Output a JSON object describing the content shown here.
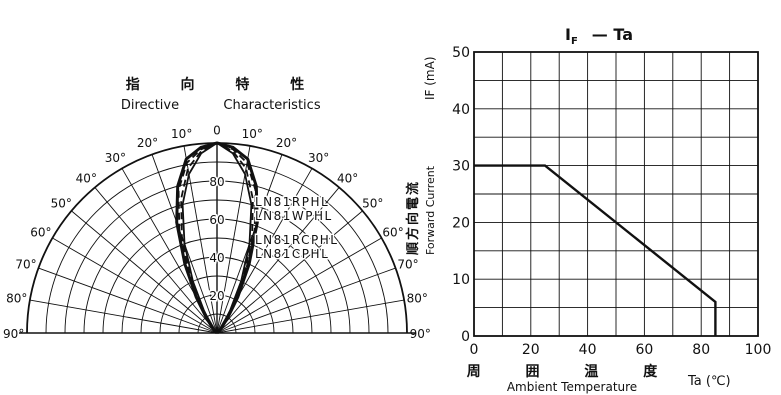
{
  "chart_data": [
    {
      "type": "polar",
      "title_cn": "指 向 特 性",
      "title_en_1": "Directive",
      "title_en_2": "Characteristics",
      "angle_ticks": [
        "0",
        "10°",
        "20°",
        "30°",
        "40°",
        "50°",
        "60°",
        "70°",
        "80°",
        "90°",
        "10°",
        "20°",
        "30°",
        "40°",
        "50°",
        "60°",
        "70°",
        "80°",
        "90°"
      ],
      "angles_right": [
        0,
        10,
        20,
        30,
        40,
        50,
        60,
        70,
        80,
        90
      ],
      "angles_left": [
        10,
        20,
        30,
        40,
        50,
        60,
        70,
        80,
        90
      ],
      "radial_ticks": [
        "20",
        "40",
        "60",
        "80"
      ],
      "radial_values": [
        20,
        40,
        60,
        80
      ],
      "rlim": [
        0,
        100
      ],
      "series": [
        {
          "name": "LN81RPHL",
          "style": "solid-thick",
          "points": [
            [
              0,
              100
            ],
            [
              5,
              98
            ],
            [
              10,
              93
            ],
            [
              15,
              80
            ],
            [
              20,
              62
            ],
            [
              25,
              40
            ],
            [
              30,
              22
            ],
            [
              35,
              10
            ],
            [
              40,
              4
            ],
            [
              50,
              1
            ],
            [
              90,
              0
            ]
          ]
        },
        {
          "name": "LN81WPHL",
          "style": "dashed",
          "points": [
            [
              0,
              100
            ],
            [
              5,
              97
            ],
            [
              10,
              91
            ],
            [
              15,
              78
            ],
            [
              20,
              58
            ],
            [
              25,
              36
            ],
            [
              30,
              18
            ],
            [
              35,
              8
            ],
            [
              40,
              3
            ],
            [
              50,
              1
            ],
            [
              90,
              0
            ]
          ]
        },
        {
          "name": "LN81RCPHL",
          "style": "solid",
          "points": [
            [
              0,
              100
            ],
            [
              5,
              95
            ],
            [
              10,
              85
            ],
            [
              15,
              70
            ],
            [
              20,
              50
            ],
            [
              25,
              30
            ],
            [
              30,
              14
            ],
            [
              35,
              6
            ],
            [
              45,
              2
            ],
            [
              90,
              0
            ]
          ]
        },
        {
          "name": "LN81CPHL",
          "style": "dashed",
          "points": [
            [
              0,
              100
            ],
            [
              5,
              96
            ],
            [
              10,
              88
            ],
            [
              15,
              73
            ],
            [
              20,
              54
            ],
            [
              25,
              34
            ],
            [
              30,
              17
            ],
            [
              35,
              7
            ],
            [
              45,
              2
            ],
            [
              90,
              0
            ]
          ]
        }
      ],
      "legend": [
        "LN81RPHL",
        "LN81WPHL",
        "LN81RCPHL",
        "LN81CPHL"
      ]
    },
    {
      "type": "line",
      "title": "I F — Ta",
      "title_main": "I",
      "title_sub": "F",
      "title_rest": "— Ta",
      "ylabel_cn": "順方向電流",
      "ylabel_en": "Forward Current",
      "ylabel_unit": "IF (mA)",
      "xlabel_cn": "周 囲 温 度",
      "xlabel_en": "Ambient Temperature",
      "xlabel_unit": "Ta (℃)",
      "xlim": [
        0,
        100
      ],
      "ylim": [
        0,
        50
      ],
      "xticks": [
        "0",
        "20",
        "40",
        "60",
        "80",
        "100"
      ],
      "yticks": [
        "0",
        "10",
        "20",
        "30",
        "40",
        "50"
      ],
      "grid": true,
      "series": [
        {
          "x": [
            0,
            25,
            85,
            85
          ],
          "y": [
            30,
            30,
            6,
            0
          ]
        }
      ]
    }
  ]
}
